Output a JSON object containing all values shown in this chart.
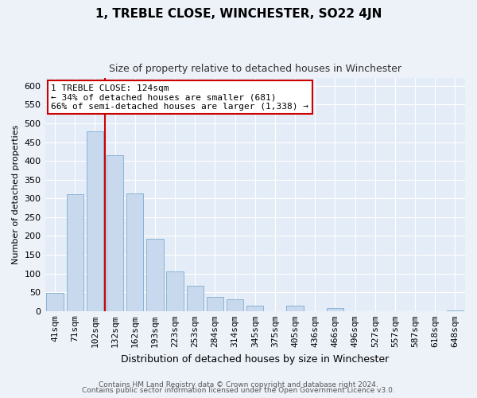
{
  "title": "1, TREBLE CLOSE, WINCHESTER, SO22 4JN",
  "subtitle": "Size of property relative to detached houses in Winchester",
  "xlabel": "Distribution of detached houses by size in Winchester",
  "ylabel": "Number of detached properties",
  "bar_labels": [
    "41sqm",
    "71sqm",
    "102sqm",
    "132sqm",
    "162sqm",
    "193sqm",
    "223sqm",
    "253sqm",
    "284sqm",
    "314sqm",
    "345sqm",
    "375sqm",
    "405sqm",
    "436sqm",
    "466sqm",
    "496sqm",
    "527sqm",
    "557sqm",
    "587sqm",
    "618sqm",
    "648sqm"
  ],
  "bar_values": [
    48,
    311,
    479,
    415,
    314,
    192,
    105,
    68,
    38,
    32,
    14,
    0,
    15,
    0,
    9,
    0,
    0,
    0,
    0,
    0,
    2
  ],
  "bar_color": "#c8d8ed",
  "bar_edge_color": "#8ab4d4",
  "property_line_color": "#cc0000",
  "annotation_line1": "1 TREBLE CLOSE: 124sqm",
  "annotation_line2": "← 34% of detached houses are smaller (681)",
  "annotation_line3": "66% of semi-detached houses are larger (1,338) →",
  "annotation_box_color": "#ffffff",
  "annotation_box_edge": "#cc0000",
  "ylim": [
    0,
    620
  ],
  "yticks": [
    0,
    50,
    100,
    150,
    200,
    250,
    300,
    350,
    400,
    450,
    500,
    550,
    600
  ],
  "footer1": "Contains HM Land Registry data © Crown copyright and database right 2024.",
  "footer2": "Contains public sector information licensed under the Open Government Licence v3.0.",
  "background_color": "#edf2f9",
  "plot_background": "#e4ecf7",
  "grid_color": "#ffffff",
  "title_fontsize": 11,
  "subtitle_fontsize": 9,
  "xlabel_fontsize": 9,
  "ylabel_fontsize": 8,
  "tick_fontsize": 8,
  "ann_fontsize": 8,
  "footer_fontsize": 6.5
}
